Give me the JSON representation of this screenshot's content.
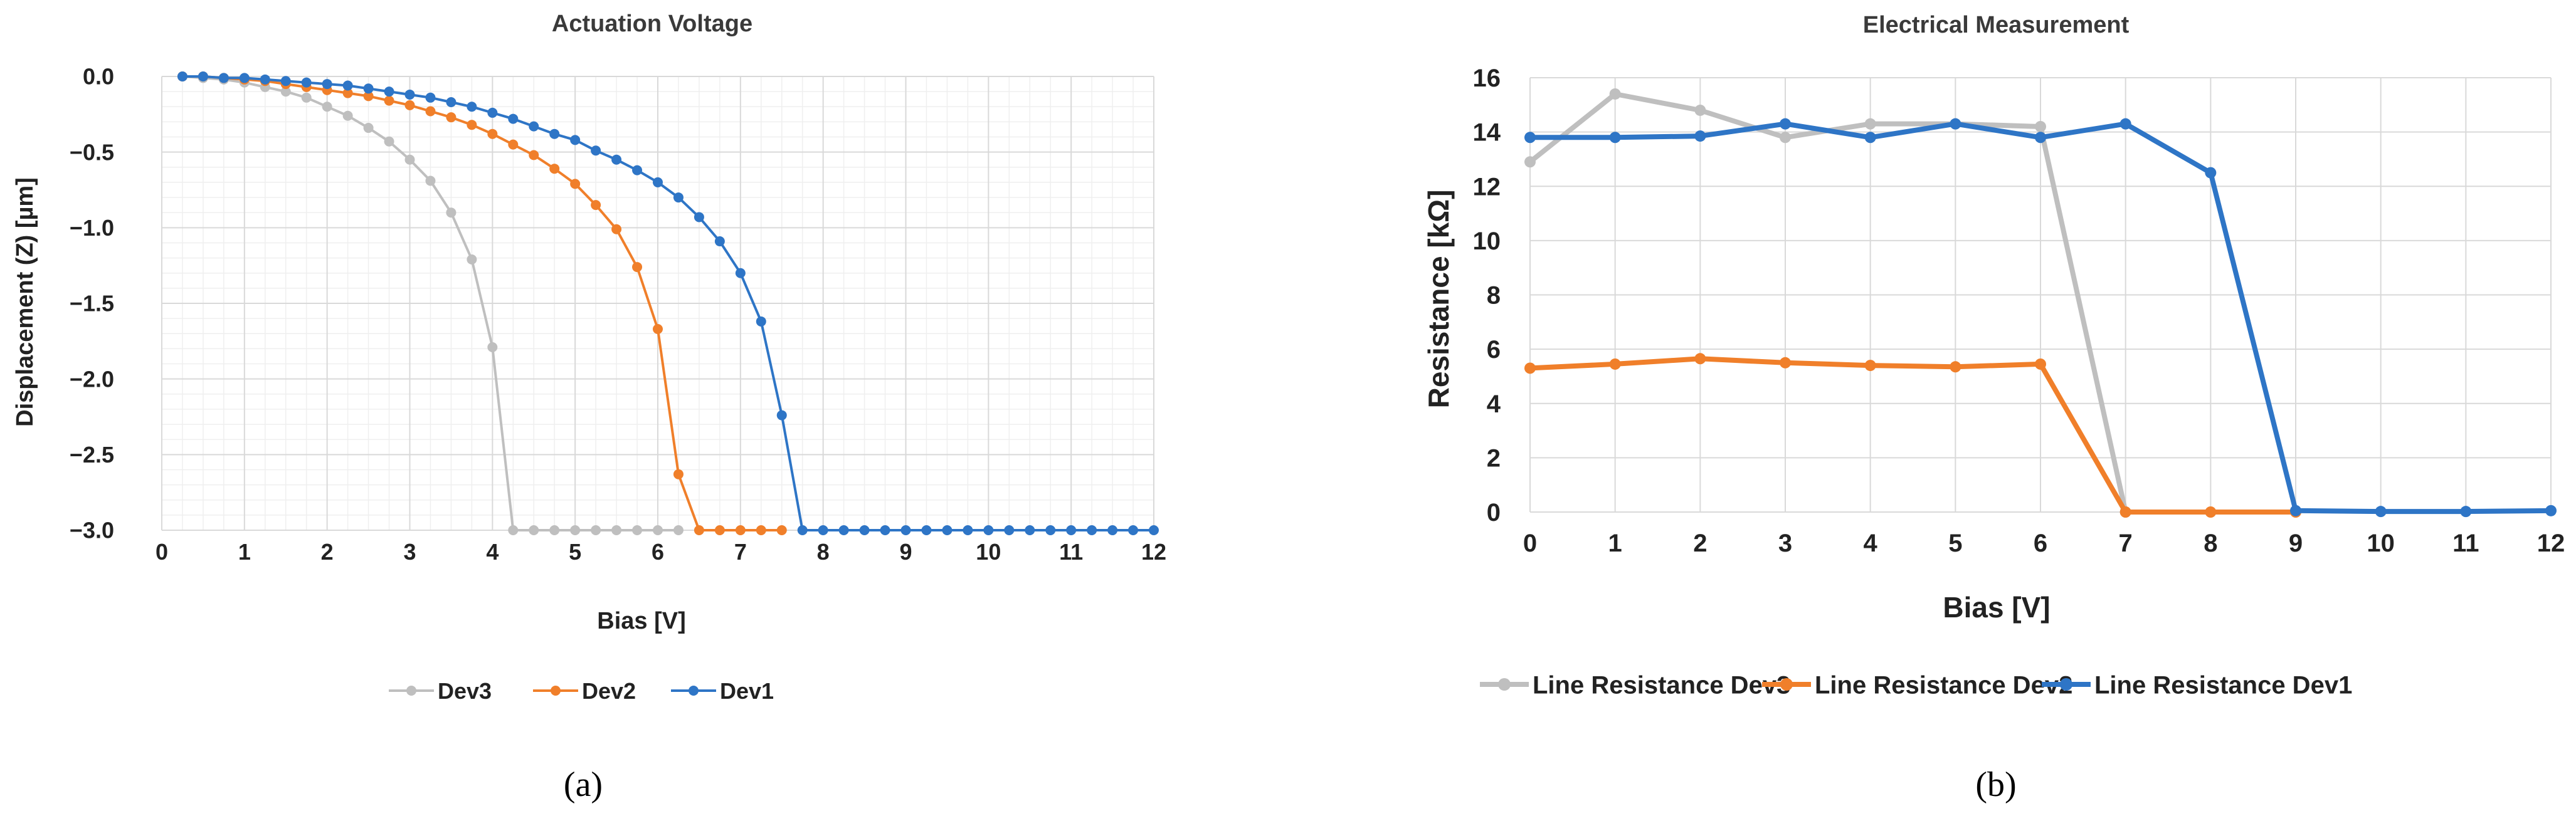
{
  "chart_data": [
    {
      "type": "scatter",
      "panel_caption": "(a)",
      "title": "Actuation Voltage",
      "xlabel": "Bias [V]",
      "ylabel": "Displacement (Z) [µm]",
      "xlim": [
        0,
        12
      ],
      "ylim": [
        -3.0,
        0.0
      ],
      "xticks": [
        0,
        1,
        2,
        3,
        4,
        5,
        6,
        7,
        8,
        9,
        10,
        11,
        12
      ],
      "yticks": [
        0.0,
        -0.5,
        -1.0,
        -1.5,
        -2.0,
        -2.5,
        -3.0
      ],
      "xtick_labels": [
        "0",
        "1",
        "2",
        "3",
        "4",
        "5",
        "6",
        "7",
        "8",
        "9",
        "10",
        "11",
        "12"
      ],
      "ytick_labels": [
        "0.0",
        "−0.5",
        "−1.0",
        "−1.5",
        "−2.0",
        "−2.5",
        "−3.0"
      ],
      "grid": true,
      "minor_grid": true,
      "legend_position": "bottom",
      "series": [
        {
          "name": "Dev3",
          "color": "#bfbfbf",
          "points": [
            [
              0.25,
              0.0
            ],
            [
              0.5,
              -0.01
            ],
            [
              0.75,
              -0.02
            ],
            [
              1.0,
              -0.04
            ],
            [
              1.25,
              -0.07
            ],
            [
              1.5,
              -0.1
            ],
            [
              1.75,
              -0.14
            ],
            [
              2.0,
              -0.2
            ],
            [
              2.25,
              -0.26
            ],
            [
              2.5,
              -0.34
            ],
            [
              2.75,
              -0.43
            ],
            [
              3.0,
              -0.55
            ],
            [
              3.25,
              -0.69
            ],
            [
              3.5,
              -0.9
            ],
            [
              3.75,
              -1.21
            ],
            [
              4.0,
              -1.79
            ],
            [
              4.25,
              -3.0
            ],
            [
              4.5,
              -3.0
            ],
            [
              4.75,
              -3.0
            ],
            [
              5.0,
              -3.0
            ],
            [
              5.25,
              -3.0
            ],
            [
              5.5,
              -3.0
            ],
            [
              5.75,
              -3.0
            ],
            [
              6.0,
              -3.0
            ],
            [
              6.25,
              -3.0
            ]
          ]
        },
        {
          "name": "Dev2",
          "color": "#f07f2a",
          "points": [
            [
              0.25,
              0.0
            ],
            [
              0.5,
              0.0
            ],
            [
              0.75,
              -0.01
            ],
            [
              1.0,
              -0.02
            ],
            [
              1.25,
              -0.03
            ],
            [
              1.5,
              -0.05
            ],
            [
              1.75,
              -0.07
            ],
            [
              2.0,
              -0.09
            ],
            [
              2.25,
              -0.11
            ],
            [
              2.5,
              -0.13
            ],
            [
              2.75,
              -0.16
            ],
            [
              3.0,
              -0.19
            ],
            [
              3.25,
              -0.23
            ],
            [
              3.5,
              -0.27
            ],
            [
              3.75,
              -0.32
            ],
            [
              4.0,
              -0.38
            ],
            [
              4.25,
              -0.45
            ],
            [
              4.5,
              -0.52
            ],
            [
              4.75,
              -0.61
            ],
            [
              5.0,
              -0.71
            ],
            [
              5.25,
              -0.85
            ],
            [
              5.5,
              -1.01
            ],
            [
              5.75,
              -1.26
            ],
            [
              6.0,
              -1.67
            ],
            [
              6.25,
              -2.63
            ],
            [
              6.5,
              -3.0
            ],
            [
              6.75,
              -3.0
            ],
            [
              7.0,
              -3.0
            ],
            [
              7.25,
              -3.0
            ],
            [
              7.5,
              -3.0
            ]
          ]
        },
        {
          "name": "Dev1",
          "color": "#2e75c6",
          "points": [
            [
              0.25,
              0.0
            ],
            [
              0.5,
              0.0
            ],
            [
              0.75,
              -0.01
            ],
            [
              1.0,
              -0.01
            ],
            [
              1.25,
              -0.02
            ],
            [
              1.5,
              -0.03
            ],
            [
              1.75,
              -0.04
            ],
            [
              2.0,
              -0.05
            ],
            [
              2.25,
              -0.06
            ],
            [
              2.5,
              -0.08
            ],
            [
              2.75,
              -0.1
            ],
            [
              3.0,
              -0.12
            ],
            [
              3.25,
              -0.14
            ],
            [
              3.5,
              -0.17
            ],
            [
              3.75,
              -0.2
            ],
            [
              4.0,
              -0.24
            ],
            [
              4.25,
              -0.28
            ],
            [
              4.5,
              -0.33
            ],
            [
              4.75,
              -0.38
            ],
            [
              5.0,
              -0.42
            ],
            [
              5.25,
              -0.49
            ],
            [
              5.5,
              -0.55
            ],
            [
              5.75,
              -0.62
            ],
            [
              6.0,
              -0.7
            ],
            [
              6.25,
              -0.8
            ],
            [
              6.5,
              -0.93
            ],
            [
              6.75,
              -1.09
            ],
            [
              7.0,
              -1.3
            ],
            [
              7.25,
              -1.62
            ],
            [
              7.5,
              -2.24
            ],
            [
              7.75,
              -3.0
            ],
            [
              8.0,
              -3.0
            ],
            [
              8.25,
              -3.0
            ],
            [
              8.5,
              -3.0
            ],
            [
              8.75,
              -3.0
            ],
            [
              9.0,
              -3.0
            ],
            [
              9.25,
              -3.0
            ],
            [
              9.5,
              -3.0
            ],
            [
              9.75,
              -3.0
            ],
            [
              10.0,
              -3.0
            ],
            [
              10.25,
              -3.0
            ],
            [
              10.5,
              -3.0
            ],
            [
              10.75,
              -3.0
            ],
            [
              11.0,
              -3.0
            ],
            [
              11.25,
              -3.0
            ],
            [
              11.5,
              -3.0
            ],
            [
              11.75,
              -3.0
            ],
            [
              12.0,
              -3.0
            ]
          ]
        }
      ]
    },
    {
      "type": "line",
      "panel_caption": "(b)",
      "title": "Electrical Measurement",
      "xlabel": "Bias [V]",
      "ylabel": "Resistance [kΩ]",
      "xlim": [
        0,
        12
      ],
      "ylim": [
        0,
        16
      ],
      "xticks": [
        0,
        1,
        2,
        3,
        4,
        5,
        6,
        7,
        8,
        9,
        10,
        11,
        12
      ],
      "yticks": [
        0,
        2,
        4,
        6,
        8,
        10,
        12,
        14,
        16
      ],
      "xtick_labels": [
        "0",
        "1",
        "2",
        "3",
        "4",
        "5",
        "6",
        "7",
        "8",
        "9",
        "10",
        "11",
        "12"
      ],
      "ytick_labels": [
        "0",
        "2",
        "4",
        "6",
        "8",
        "10",
        "12",
        "14",
        "16"
      ],
      "grid": true,
      "minor_grid": false,
      "legend_position": "bottom",
      "series": [
        {
          "name": "Line Resistance Dev3",
          "color": "#bfbfbf",
          "points": [
            [
              0,
              12.9
            ],
            [
              1,
              15.4
            ],
            [
              2,
              14.8
            ],
            [
              3,
              13.8
            ],
            [
              4,
              14.3
            ],
            [
              5,
              14.3
            ],
            [
              6,
              14.2
            ],
            [
              7,
              0.0
            ]
          ]
        },
        {
          "name": "Line Resistance Dev2",
          "color": "#f07f2a",
          "points": [
            [
              0,
              5.3
            ],
            [
              1,
              5.45
            ],
            [
              2,
              5.65
            ],
            [
              3,
              5.5
            ],
            [
              4,
              5.4
            ],
            [
              5,
              5.35
            ],
            [
              6,
              5.45
            ],
            [
              7,
              0.0
            ],
            [
              8,
              0.0
            ],
            [
              9,
              0.0
            ]
          ]
        },
        {
          "name": "Line Resistance Dev1",
          "color": "#2e75c6",
          "points": [
            [
              0,
              13.8
            ],
            [
              1,
              13.8
            ],
            [
              2,
              13.85
            ],
            [
              3,
              14.3
            ],
            [
              4,
              13.8
            ],
            [
              5,
              14.3
            ],
            [
              6,
              13.8
            ],
            [
              7,
              14.3
            ],
            [
              8,
              12.5
            ],
            [
              9,
              0.05
            ],
            [
              10,
              0.02
            ],
            [
              11,
              0.02
            ],
            [
              12,
              0.05
            ]
          ]
        }
      ]
    }
  ]
}
